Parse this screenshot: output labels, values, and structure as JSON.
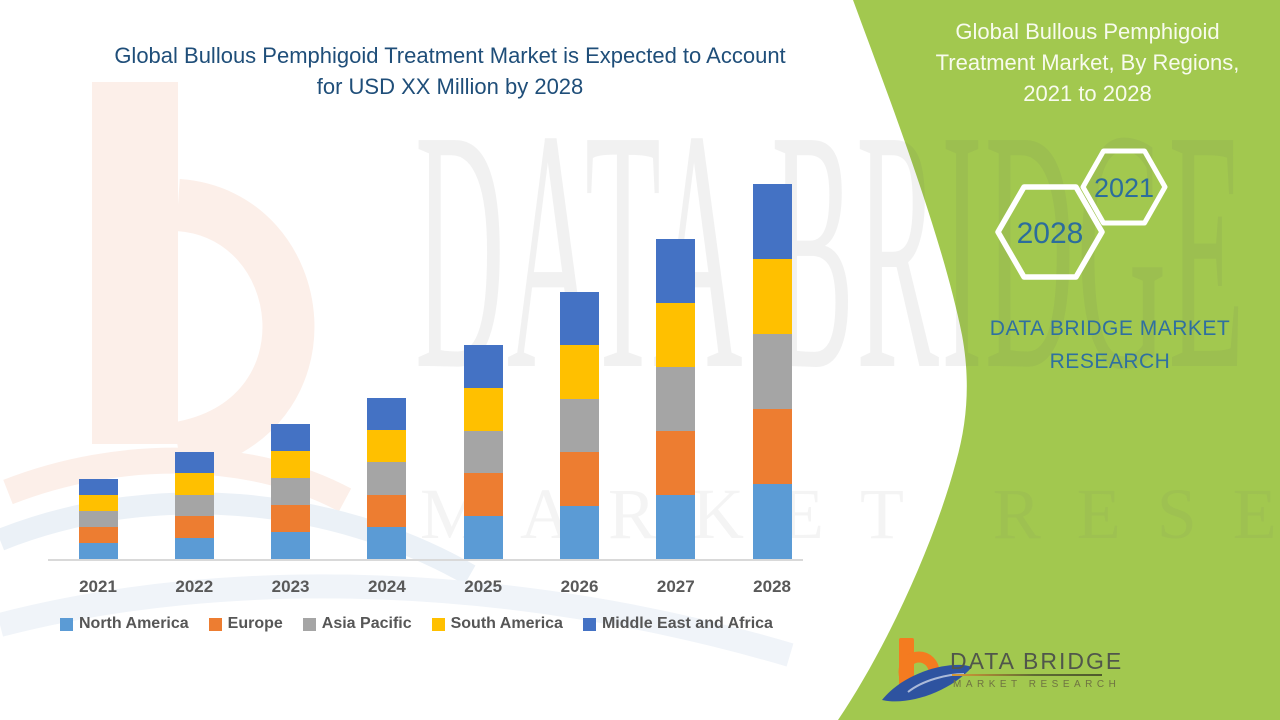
{
  "page": {
    "background": "#FFFFFF",
    "accent_green": "#A2C84F",
    "axis_line_color": "#D9D9D9"
  },
  "chart": {
    "title_line1": "Global Bullous Pemphigoid Treatment Market is Expected to Account",
    "title_line2": "for USD XX Million by 2028",
    "title_color": "#1F4E79"
  },
  "chart_data": {
    "type": "bar",
    "stacked": true,
    "title": "Global Bullous Pemphigoid Treatment Market is Expected to Account for USD XX Million by 2028",
    "xlabel": "",
    "ylabel": "",
    "units_note": "USD Million (figures shown as XX in title, axis values not displayed)",
    "categories": [
      "2021",
      "2022",
      "2023",
      "2024",
      "2025",
      "2026",
      "2027",
      "2028"
    ],
    "series": [
      {
        "name": "North America",
        "color": "#5B9BD5",
        "values": [
          16,
          21.4,
          27,
          32.2,
          42.8,
          53.4,
          64,
          75
        ]
      },
      {
        "name": "Europe",
        "color": "#ED7D31",
        "values": [
          16,
          21.4,
          27,
          32.2,
          42.8,
          53.4,
          64,
          75
        ]
      },
      {
        "name": "Asia Pacific",
        "color": "#A5A5A5",
        "values": [
          16,
          21.4,
          27,
          32.2,
          42.8,
          53.4,
          64,
          75
        ]
      },
      {
        "name": "South America",
        "color": "#FFC000",
        "values": [
          16,
          21.4,
          27,
          32.2,
          42.8,
          53.4,
          64,
          75
        ]
      },
      {
        "name": "Middle East and Africa",
        "color": "#4472C4",
        "values": [
          16,
          21.4,
          27,
          32.2,
          42.8,
          53.4,
          64,
          75
        ]
      }
    ],
    "totals_relative": [
      80,
      107,
      135,
      161,
      214,
      267,
      320,
      375
    ],
    "ylim": [
      0,
      400
    ],
    "grid": false,
    "legend_position": "bottom"
  },
  "side_panel": {
    "heading_line1": "Global Bullous Pemphigoid",
    "heading_line2": "Treatment Market, By Regions,",
    "heading_line3": "2021 to 2028",
    "hexagons": [
      {
        "label": "2028"
      },
      {
        "label": "2021"
      }
    ],
    "brand_text_line1": "DATA BRIDGE MARKET",
    "brand_text_line2": "RESEARCH"
  },
  "logo": {
    "name_line": "DATA BRIDGE",
    "tagline": "MARKET RESEARCH"
  },
  "watermarks": {
    "big_text": "DATA BRIDGE",
    "small_text": "MARKET RESEARCH"
  }
}
